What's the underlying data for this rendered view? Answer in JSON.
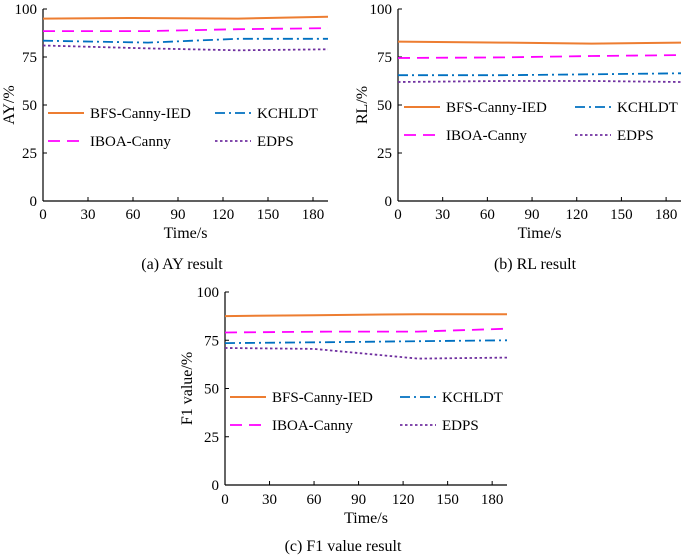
{
  "chart_data": [
    {
      "type": "line",
      "caption": "(a) AY result",
      "xlabel": "Time/s",
      "ylabel": "AY/%",
      "xlim": [
        0,
        190
      ],
      "ylim": [
        0,
        100
      ],
      "xticks": [
        0,
        30,
        60,
        90,
        120,
        150,
        180
      ],
      "yticks": [
        0,
        25,
        50,
        75,
        100
      ],
      "legend_position": "center",
      "series": [
        {
          "name": "BFS-Canny-IED",
          "color": "#ed7d31",
          "dash": "solid",
          "x": [
            0,
            60,
            130,
            190
          ],
          "y": [
            95,
            95.3,
            95,
            96
          ]
        },
        {
          "name": "KCHLDT",
          "color": "#0070c0",
          "dash": "dashdot",
          "x": [
            0,
            70,
            130,
            190
          ],
          "y": [
            83.5,
            82.5,
            84.5,
            84.5
          ]
        },
        {
          "name": "IBOA-Canny",
          "color": "#ff00ff",
          "dash": "longdash",
          "x": [
            0,
            70,
            130,
            190
          ],
          "y": [
            88.5,
            88.5,
            89.5,
            90
          ]
        },
        {
          "name": "EDPS",
          "color": "#7030a0",
          "dash": "dotted",
          "x": [
            0,
            70,
            130,
            190
          ],
          "y": [
            81,
            79.5,
            78.5,
            79
          ]
        }
      ]
    },
    {
      "type": "line",
      "caption": "(b) RL result",
      "xlabel": "Time/s",
      "ylabel": "RL/%",
      "xlim": [
        0,
        190
      ],
      "ylim": [
        0,
        100
      ],
      "xticks": [
        0,
        30,
        60,
        90,
        120,
        150,
        180
      ],
      "yticks": [
        0,
        25,
        50,
        75,
        100
      ],
      "legend_position": "center",
      "series": [
        {
          "name": "BFS-Canny-IED",
          "color": "#ed7d31",
          "dash": "solid",
          "x": [
            0,
            70,
            130,
            190
          ],
          "y": [
            83,
            82.5,
            82,
            82.5
          ]
        },
        {
          "name": "KCHLDT",
          "color": "#0070c0",
          "dash": "dashdot",
          "x": [
            0,
            70,
            130,
            190
          ],
          "y": [
            65.5,
            65.5,
            66,
            66.5
          ]
        },
        {
          "name": "IBOA-Canny",
          "color": "#ff00ff",
          "dash": "longdash",
          "x": [
            0,
            70,
            130,
            190
          ],
          "y": [
            74.5,
            74.8,
            75.5,
            76
          ]
        },
        {
          "name": "EDPS",
          "color": "#7030a0",
          "dash": "dotted",
          "x": [
            0,
            70,
            130,
            190
          ],
          "y": [
            62,
            62.5,
            62.5,
            62
          ]
        }
      ]
    },
    {
      "type": "line",
      "caption": "(c) F1 value result",
      "xlabel": "Time/s",
      "ylabel": "F1 value/%",
      "xlim": [
        0,
        190
      ],
      "ylim": [
        0,
        100
      ],
      "xticks": [
        0,
        30,
        60,
        90,
        120,
        150,
        180
      ],
      "yticks": [
        0,
        25,
        50,
        75,
        100
      ],
      "legend_position": "center",
      "series": [
        {
          "name": "BFS-Canny-IED",
          "color": "#ed7d31",
          "dash": "solid",
          "x": [
            0,
            60,
            130,
            190
          ],
          "y": [
            87.5,
            88,
            88.5,
            88.5
          ]
        },
        {
          "name": "KCHLDT",
          "color": "#0070c0",
          "dash": "dashdot",
          "x": [
            0,
            70,
            130,
            190
          ],
          "y": [
            73.5,
            74,
            74.5,
            75
          ]
        },
        {
          "name": "IBOA-Canny",
          "color": "#ff00ff",
          "dash": "longdash",
          "x": [
            0,
            70,
            130,
            190
          ],
          "y": [
            79,
            79.5,
            79.5,
            81
          ]
        },
        {
          "name": "EDPS",
          "color": "#7030a0",
          "dash": "dotted",
          "x": [
            0,
            60,
            130,
            190
          ],
          "y": [
            71,
            70.5,
            65.5,
            66
          ]
        }
      ]
    }
  ]
}
